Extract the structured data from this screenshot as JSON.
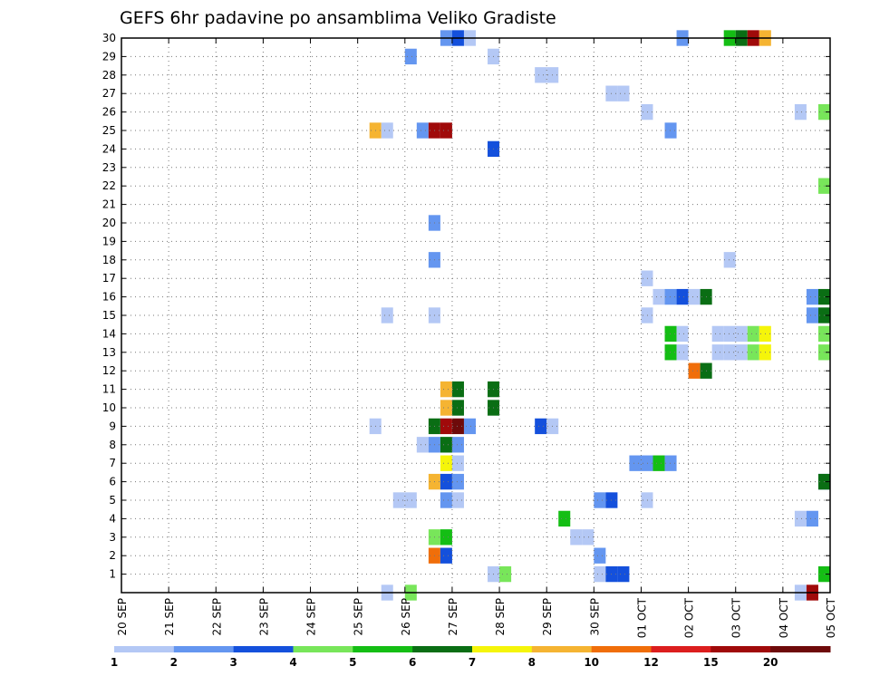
{
  "chart_data": {
    "type": "heatmap",
    "title": "GEFS 6hr padavine po ansamblima Veliko Gradiste",
    "xlabel": "",
    "ylabel": "",
    "x_tick_labels": [
      "20 SEP",
      "21 SEP",
      "22 SEP",
      "23 SEP",
      "24 SEP",
      "25 SEP",
      "26 SEP",
      "27 SEP",
      "28 SEP",
      "29 SEP",
      "30 SEP",
      "01 OCT",
      "02 OCT",
      "03 OCT",
      "04 OCT",
      "05 OCT"
    ],
    "y_tick_labels": [
      "1",
      "2",
      "3",
      "4",
      "5",
      "6",
      "7",
      "8",
      "9",
      "10",
      "11",
      "12",
      "13",
      "14",
      "15",
      "16",
      "17",
      "18",
      "19",
      "20",
      "21",
      "22",
      "23",
      "24",
      "25",
      "26",
      "27",
      "28",
      "29",
      "30"
    ],
    "x_range_days": [
      0,
      15
    ],
    "y_range": [
      0,
      30
    ],
    "grid": true,
    "time_step_hours": 6,
    "color_scale": {
      "thresholds": [
        1,
        2,
        3,
        4,
        5,
        6,
        7,
        8,
        10,
        12,
        15,
        20
      ],
      "labels": [
        "1",
        "2",
        "3",
        "4",
        "5",
        "6",
        "7",
        "8",
        "10",
        "12",
        "15",
        "20"
      ],
      "colors": [
        "#b4c8f5",
        "#6496f0",
        "#1450dc",
        "#78e65a",
        "#14be14",
        "#0a6e14",
        "#f5f50a",
        "#f5b432",
        "#f06e0a",
        "#dc1e1e",
        "#a00a0a",
        "#6e0a0a"
      ]
    },
    "cells": [
      {
        "member": 30,
        "day": 6.75,
        "level": 2
      },
      {
        "member": 30,
        "day": 7.0,
        "level": 3
      },
      {
        "member": 30,
        "day": 7.25,
        "level": 1
      },
      {
        "member": 30,
        "day": 11.75,
        "level": 2
      },
      {
        "member": 30,
        "day": 12.75,
        "level": 5
      },
      {
        "member": 30,
        "day": 13.0,
        "level": 6
      },
      {
        "member": 30,
        "day": 13.25,
        "level": 11
      },
      {
        "member": 30,
        "day": 13.5,
        "level": 8
      },
      {
        "member": 29,
        "day": 6.0,
        "level": 2
      },
      {
        "member": 29,
        "day": 7.75,
        "level": 1
      },
      {
        "member": 28,
        "day": 8.75,
        "level": 1
      },
      {
        "member": 28,
        "day": 9.0,
        "level": 1
      },
      {
        "member": 27,
        "day": 10.25,
        "level": 1
      },
      {
        "member": 27,
        "day": 10.5,
        "level": 1
      },
      {
        "member": 26,
        "day": 11.0,
        "level": 1
      },
      {
        "member": 26,
        "day": 14.25,
        "level": 1
      },
      {
        "member": 26,
        "day": 14.95,
        "level": 4
      },
      {
        "member": 25,
        "day": 5.25,
        "level": 8
      },
      {
        "member": 25,
        "day": 5.5,
        "level": 1
      },
      {
        "member": 25,
        "day": 6.25,
        "level": 2
      },
      {
        "member": 25,
        "day": 6.5,
        "level": 11
      },
      {
        "member": 25,
        "day": 6.75,
        "level": 11
      },
      {
        "member": 25,
        "day": 11.5,
        "level": 2
      },
      {
        "member": 24,
        "day": 7.75,
        "level": 3
      },
      {
        "member": 22,
        "day": 14.75,
        "level": 4
      },
      {
        "member": 20,
        "day": 6.5,
        "level": 2
      },
      {
        "member": 18,
        "day": 6.5,
        "level": 2
      },
      {
        "member": 18,
        "day": 12.75,
        "level": 1
      },
      {
        "member": 17,
        "day": 11.0,
        "level": 1
      },
      {
        "member": 16,
        "day": 11.25,
        "level": 1
      },
      {
        "member": 16,
        "day": 11.5,
        "level": 2
      },
      {
        "member": 16,
        "day": 11.75,
        "level": 3
      },
      {
        "member": 16,
        "day": 12.0,
        "level": 1
      },
      {
        "member": 16,
        "day": 12.25,
        "level": 6
      },
      {
        "member": 16,
        "day": 14.5,
        "level": 2
      },
      {
        "member": 16,
        "day": 14.75,
        "level": 6
      },
      {
        "member": 15,
        "day": 5.5,
        "level": 1
      },
      {
        "member": 15,
        "day": 6.5,
        "level": 1
      },
      {
        "member": 15,
        "day": 11.0,
        "level": 1
      },
      {
        "member": 15,
        "day": 14.5,
        "level": 2
      },
      {
        "member": 15,
        "day": 14.75,
        "level": 6
      },
      {
        "member": 14,
        "day": 11.5,
        "level": 5
      },
      {
        "member": 14,
        "day": 11.75,
        "level": 1
      },
      {
        "member": 14,
        "day": 12.5,
        "level": 1
      },
      {
        "member": 14,
        "day": 12.75,
        "level": 1
      },
      {
        "member": 14,
        "day": 13.0,
        "level": 1
      },
      {
        "member": 14,
        "day": 13.25,
        "level": 4
      },
      {
        "member": 14,
        "day": 13.5,
        "level": 7
      },
      {
        "member": 14,
        "day": 14.75,
        "level": 4
      },
      {
        "member": 13,
        "day": 11.5,
        "level": 5
      },
      {
        "member": 13,
        "day": 11.75,
        "level": 1
      },
      {
        "member": 13,
        "day": 12.5,
        "level": 1
      },
      {
        "member": 13,
        "day": 12.75,
        "level": 1
      },
      {
        "member": 13,
        "day": 13.0,
        "level": 1
      },
      {
        "member": 13,
        "day": 13.25,
        "level": 4
      },
      {
        "member": 13,
        "day": 13.5,
        "level": 7
      },
      {
        "member": 13,
        "day": 14.75,
        "level": 4
      },
      {
        "member": 12,
        "day": 12.0,
        "level": 9
      },
      {
        "member": 12,
        "day": 12.25,
        "level": 6
      },
      {
        "member": 10,
        "day": 6.75,
        "level": 8
      },
      {
        "member": 10,
        "day": 7.0,
        "level": 6
      },
      {
        "member": 10,
        "day": 7.75,
        "level": 6
      },
      {
        "member": 11,
        "day": 6.75,
        "level": 8
      },
      {
        "member": 11,
        "day": 7.0,
        "level": 6
      },
      {
        "member": 11,
        "day": 7.75,
        "level": 6
      },
      {
        "member": 9,
        "day": 5.25,
        "level": 1
      },
      {
        "member": 9,
        "day": 6.5,
        "level": 6
      },
      {
        "member": 9,
        "day": 6.75,
        "level": 11
      },
      {
        "member": 9,
        "day": 7.0,
        "level": 12
      },
      {
        "member": 9,
        "day": 7.25,
        "level": 2
      },
      {
        "member": 9,
        "day": 8.75,
        "level": 3
      },
      {
        "member": 9,
        "day": 9.0,
        "level": 1
      },
      {
        "member": 8,
        "day": 6.25,
        "level": 1
      },
      {
        "member": 8,
        "day": 6.5,
        "level": 2
      },
      {
        "member": 8,
        "day": 6.75,
        "level": 6
      },
      {
        "member": 8,
        "day": 7.0,
        "level": 2
      },
      {
        "member": 7,
        "day": 6.75,
        "level": 7
      },
      {
        "member": 7,
        "day": 7.0,
        "level": 1
      },
      {
        "member": 7,
        "day": 10.75,
        "level": 2
      },
      {
        "member": 7,
        "day": 11.0,
        "level": 2
      },
      {
        "member": 7,
        "day": 11.25,
        "level": 5
      },
      {
        "member": 7,
        "day": 11.5,
        "level": 2
      },
      {
        "member": 6,
        "day": 6.5,
        "level": 8
      },
      {
        "member": 6,
        "day": 6.75,
        "level": 3
      },
      {
        "member": 6,
        "day": 7.0,
        "level": 2
      },
      {
        "member": 6,
        "day": 14.75,
        "level": 2
      },
      {
        "member": 6,
        "day": 14.95,
        "level": 6
      },
      {
        "member": 5,
        "day": 5.75,
        "level": 1
      },
      {
        "member": 5,
        "day": 6.0,
        "level": 1
      },
      {
        "member": 5,
        "day": 6.75,
        "level": 2
      },
      {
        "member": 5,
        "day": 7.0,
        "level": 1
      },
      {
        "member": 5,
        "day": 10.0,
        "level": 2
      },
      {
        "member": 5,
        "day": 10.25,
        "level": 3
      },
      {
        "member": 5,
        "day": 11.0,
        "level": 1
      },
      {
        "member": 4,
        "day": 9.25,
        "level": 5
      },
      {
        "member": 4,
        "day": 14.25,
        "level": 1
      },
      {
        "member": 4,
        "day": 14.5,
        "level": 2
      },
      {
        "member": 3,
        "day": 6.5,
        "level": 4
      },
      {
        "member": 3,
        "day": 6.75,
        "level": 5
      },
      {
        "member": 3,
        "day": 9.5,
        "level": 1
      },
      {
        "member": 3,
        "day": 9.75,
        "level": 1
      },
      {
        "member": 2,
        "day": 6.5,
        "level": 9
      },
      {
        "member": 2,
        "day": 6.75,
        "level": 3
      },
      {
        "member": 2,
        "day": 10.0,
        "level": 2
      },
      {
        "member": 1,
        "day": 7.75,
        "level": 1
      },
      {
        "member": 1,
        "day": 8.0,
        "level": 4
      },
      {
        "member": 1,
        "day": 10.0,
        "level": 1
      },
      {
        "member": 1,
        "day": 10.25,
        "level": 3
      },
      {
        "member": 1,
        "day": 10.5,
        "level": 3
      },
      {
        "member": 1,
        "day": 14.75,
        "level": 5
      },
      {
        "member": 0,
        "day": 5.5,
        "level": 1
      },
      {
        "member": 0,
        "day": 6.0,
        "level": 4
      },
      {
        "member": 0,
        "day": 14.25,
        "level": 1
      },
      {
        "member": 0,
        "day": 14.5,
        "level": 11
      }
    ]
  }
}
